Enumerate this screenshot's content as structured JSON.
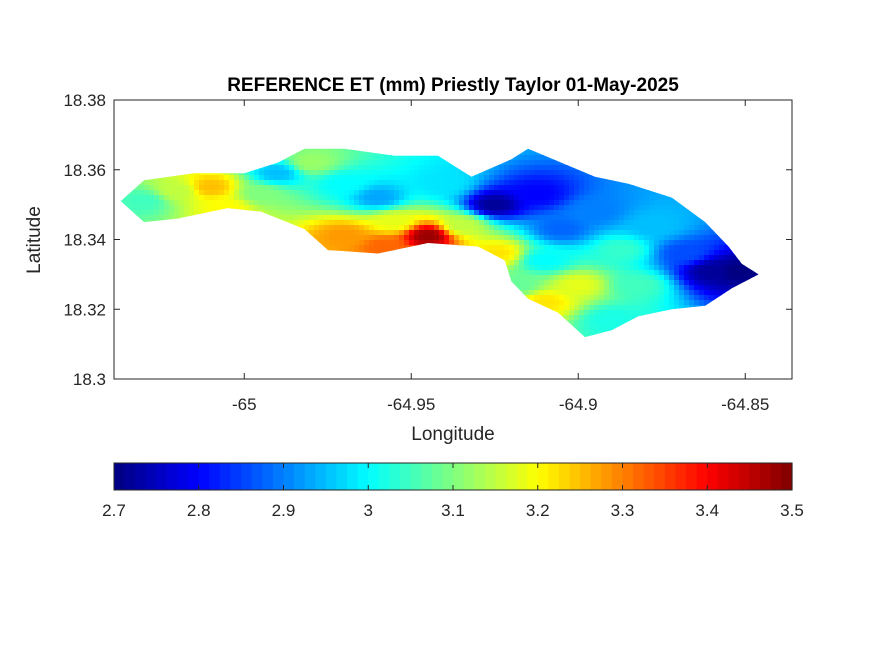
{
  "chart_data": {
    "type": "heatmap",
    "title": "REFERENCE ET (mm) Priestly Taylor 01-May-2025",
    "xlabel": "Longitude",
    "ylabel": "Latitude",
    "xlim": [
      -65.039,
      -64.836
    ],
    "ylim": [
      18.3,
      18.38
    ],
    "xticks": [
      -65,
      -64.95,
      -64.9,
      -64.85
    ],
    "xtick_labels": [
      "-65",
      "-64.95",
      "-64.9",
      "-64.85"
    ],
    "yticks": [
      18.3,
      18.32,
      18.34,
      18.36,
      18.38
    ],
    "ytick_labels": [
      "18.3",
      "18.32",
      "18.34",
      "18.36",
      "18.38"
    ],
    "grid": false,
    "colormap": "jet",
    "colorbar": {
      "orientation": "horizontal",
      "location": "bottom",
      "clim": [
        2.7,
        3.5
      ],
      "ticks": [
        2.7,
        2.8,
        2.9,
        3.0,
        3.1,
        3.2,
        3.3,
        3.4,
        3.5
      ],
      "tick_labels": [
        "2.7",
        "2.8",
        "2.9",
        "3",
        "3.1",
        "3.2",
        "3.3",
        "3.4",
        "3.5"
      ]
    },
    "region_outline": [
      [
        -65.037,
        18.351
      ],
      [
        -65.03,
        18.357
      ],
      [
        -65.015,
        18.359
      ],
      [
        -65.0,
        18.359
      ],
      [
        -64.99,
        18.362
      ],
      [
        -64.982,
        18.366
      ],
      [
        -64.97,
        18.366
      ],
      [
        -64.955,
        18.364
      ],
      [
        -64.942,
        18.364
      ],
      [
        -64.932,
        18.358
      ],
      [
        -64.92,
        18.363
      ],
      [
        -64.915,
        18.366
      ],
      [
        -64.905,
        18.362
      ],
      [
        -64.895,
        18.358
      ],
      [
        -64.885,
        18.356
      ],
      [
        -64.872,
        18.352
      ],
      [
        -64.862,
        18.345
      ],
      [
        -64.855,
        18.338
      ],
      [
        -64.851,
        18.333
      ],
      [
        -64.846,
        18.33
      ],
      [
        -64.854,
        18.326
      ],
      [
        -64.862,
        18.321
      ],
      [
        -64.872,
        18.32
      ],
      [
        -64.882,
        18.318
      ],
      [
        -64.89,
        18.314
      ],
      [
        -64.898,
        18.312
      ],
      [
        -64.906,
        18.319
      ],
      [
        -64.915,
        18.323
      ],
      [
        -64.92,
        18.328
      ],
      [
        -64.922,
        18.334
      ],
      [
        -64.93,
        18.338
      ],
      [
        -64.945,
        18.339
      ],
      [
        -64.96,
        18.336
      ],
      [
        -64.975,
        18.337
      ],
      [
        -64.982,
        18.343
      ],
      [
        -64.995,
        18.348
      ],
      [
        -65.005,
        18.349
      ],
      [
        -65.02,
        18.346
      ],
      [
        -65.03,
        18.345
      ],
      [
        -65.037,
        18.351
      ]
    ],
    "samples": [
      {
        "lon": -65.03,
        "lat": 18.351,
        "value": 3.05
      },
      {
        "lon": -65.02,
        "lat": 18.354,
        "value": 3.15
      },
      {
        "lon": -65.01,
        "lat": 18.355,
        "value": 3.25
      },
      {
        "lon": -65.005,
        "lat": 18.349,
        "value": 3.2
      },
      {
        "lon": -64.995,
        "lat": 18.353,
        "value": 3.1
      },
      {
        "lon": -64.99,
        "lat": 18.359,
        "value": 2.95
      },
      {
        "lon": -64.98,
        "lat": 18.362,
        "value": 3.12
      },
      {
        "lon": -64.97,
        "lat": 18.356,
        "value": 3.0
      },
      {
        "lon": -64.96,
        "lat": 18.352,
        "value": 2.93
      },
      {
        "lon": -64.955,
        "lat": 18.345,
        "value": 3.18
      },
      {
        "lon": -64.97,
        "lat": 18.341,
        "value": 3.28
      },
      {
        "lon": -64.958,
        "lat": 18.338,
        "value": 3.32
      },
      {
        "lon": -64.945,
        "lat": 18.341,
        "value": 3.48
      },
      {
        "lon": -64.935,
        "lat": 18.344,
        "value": 3.15
      },
      {
        "lon": -64.94,
        "lat": 18.356,
        "value": 2.98
      },
      {
        "lon": -64.925,
        "lat": 18.35,
        "value": 2.72
      },
      {
        "lon": -64.912,
        "lat": 18.353,
        "value": 2.8
      },
      {
        "lon": -64.905,
        "lat": 18.343,
        "value": 2.88
      },
      {
        "lon": -64.91,
        "lat": 18.334,
        "value": 3.0
      },
      {
        "lon": -64.918,
        "lat": 18.327,
        "value": 3.08
      },
      {
        "lon": -64.91,
        "lat": 18.322,
        "value": 3.22
      },
      {
        "lon": -64.9,
        "lat": 18.327,
        "value": 3.18
      },
      {
        "lon": -64.895,
        "lat": 18.348,
        "value": 2.9
      },
      {
        "lon": -64.887,
        "lat": 18.337,
        "value": 3.04
      },
      {
        "lon": -64.882,
        "lat": 18.327,
        "value": 3.05
      },
      {
        "lon": -64.877,
        "lat": 18.344,
        "value": 2.95
      },
      {
        "lon": -64.868,
        "lat": 18.336,
        "value": 2.86
      },
      {
        "lon": -64.86,
        "lat": 18.331,
        "value": 2.72
      },
      {
        "lon": -64.852,
        "lat": 18.331,
        "value": 2.7
      },
      {
        "lon": -64.89,
        "lat": 18.317,
        "value": 3.02
      },
      {
        "lon": -64.924,
        "lat": 18.336,
        "value": 3.22
      }
    ]
  }
}
